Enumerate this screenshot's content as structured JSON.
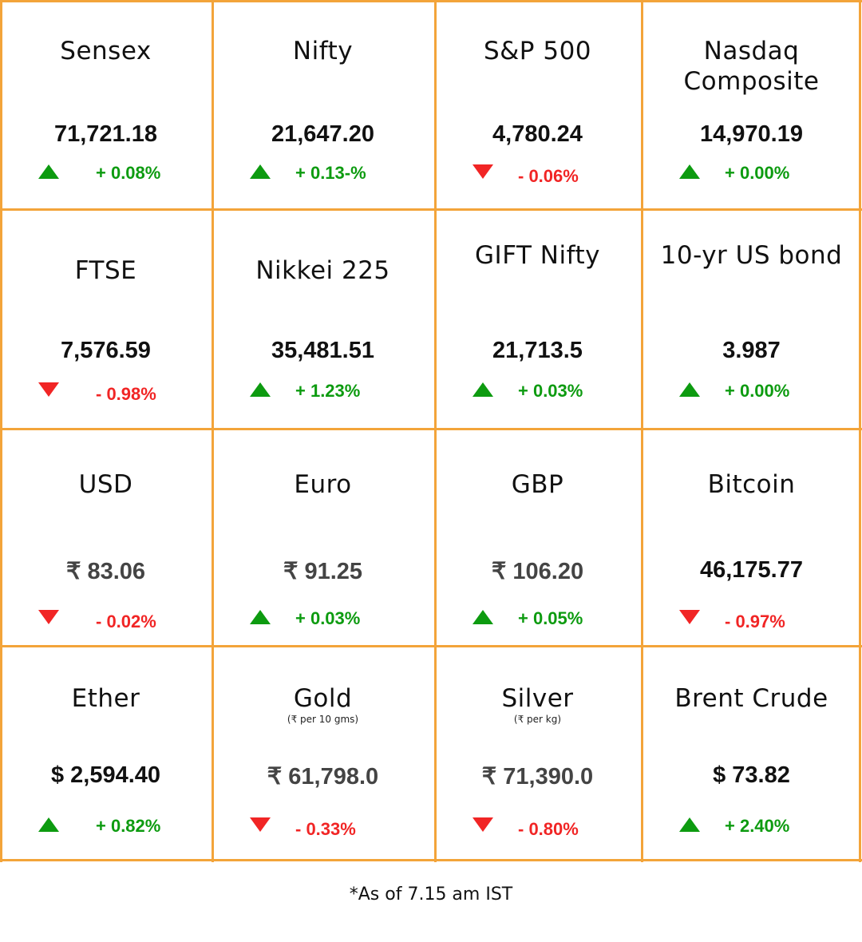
{
  "colors": {
    "border": "#f3a43a",
    "up": "#0d9b10",
    "down": "#f12525"
  },
  "tiles": [
    {
      "name": "Sensex",
      "value": "71,721.18",
      "change": "+ 0.08%",
      "direction": "up",
      "icon": "triangle-up-icon"
    },
    {
      "name": "Nifty",
      "value": "21,647.20",
      "change": "+ 0.13-%",
      "direction": "up",
      "icon": "triangle-up-icon"
    },
    {
      "name": "S&P 500",
      "value": "4,780.24",
      "change": "- 0.06%",
      "direction": "down",
      "icon": "triangle-down-icon"
    },
    {
      "name": "Nasdaq Composite",
      "value": "14,970.19",
      "change": "+ 0.00%",
      "direction": "up",
      "icon": "triangle-up-icon"
    },
    {
      "name": "FTSE",
      "value": "7,576.59",
      "change": "- 0.98%",
      "direction": "down",
      "icon": "triangle-down-icon"
    },
    {
      "name": "Nikkei 225",
      "value": "35,481.51",
      "change": "+ 1.23%",
      "direction": "up",
      "icon": "triangle-up-icon"
    },
    {
      "name": "GIFT Nifty",
      "value": "21,713.5",
      "change": "+ 0.03%",
      "direction": "up",
      "icon": "triangle-up-icon"
    },
    {
      "name": "10-yr US bond",
      "value": "3.987",
      "change": "+ 0.00%",
      "direction": "up",
      "icon": "triangle-up-icon"
    },
    {
      "name": "USD",
      "value": "₹ 83.06",
      "change": "- 0.02%",
      "direction": "down",
      "icon": "triangle-down-icon"
    },
    {
      "name": "Euro",
      "value": "₹ 91.25",
      "change": "+ 0.03%",
      "direction": "up",
      "icon": "triangle-up-icon"
    },
    {
      "name": "GBP",
      "value": "₹ 106.20",
      "change": "+ 0.05%",
      "direction": "up",
      "icon": "triangle-up-icon"
    },
    {
      "name": "Bitcoin",
      "value": "46,175.77",
      "change": "- 0.97%",
      "direction": "down",
      "icon": "triangle-down-icon"
    },
    {
      "name": "Ether",
      "value": "$ 2,594.40",
      "change": "+ 0.82%",
      "direction": "up",
      "icon": "triangle-up-icon"
    },
    {
      "name": "Gold",
      "unit": "(₹ per 10 gms)",
      "value": "₹ 61,798.0",
      "change": "- 0.33%",
      "direction": "down",
      "icon": "triangle-down-icon"
    },
    {
      "name": "Silver",
      "unit": "(₹ per kg)",
      "value": "₹ 71,390.0",
      "change": "- 0.80%",
      "direction": "down",
      "icon": "triangle-down-icon"
    },
    {
      "name": "Brent Crude",
      "value": "$ 73.82",
      "change": "+ 2.40%",
      "direction": "up",
      "icon": "triangle-up-icon"
    }
  ],
  "footnote": "*As of 7.15 am IST"
}
